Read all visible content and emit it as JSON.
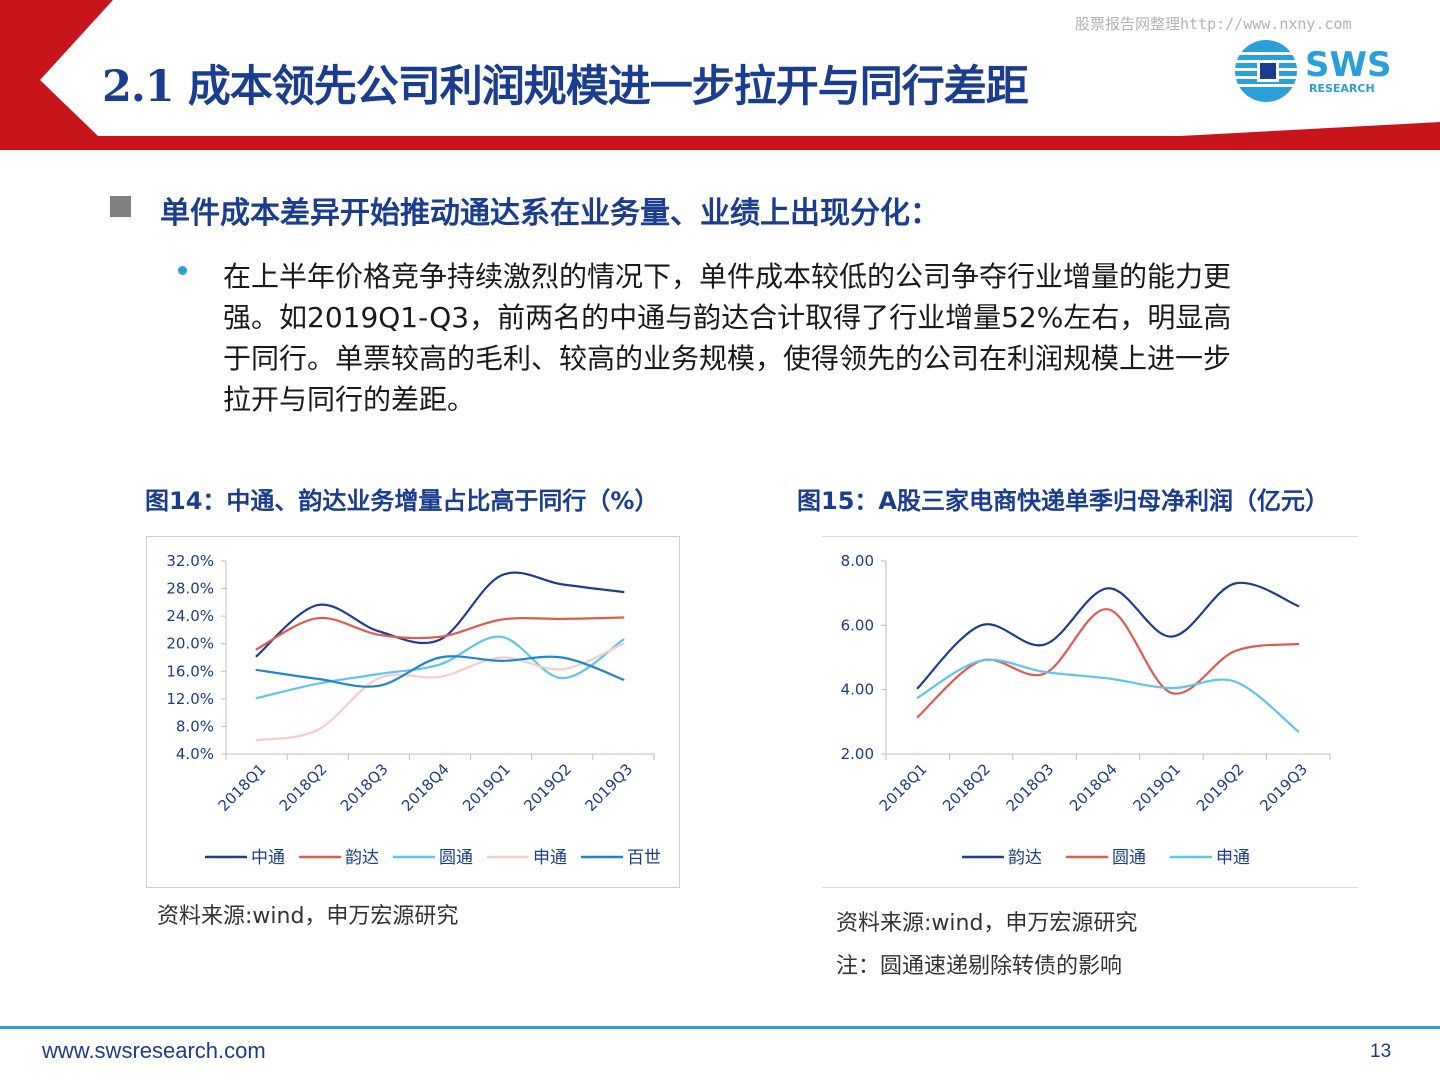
{
  "header": {
    "title": "2.1 成本领先公司利润规模进一步拉开与同行差距",
    "watermark": "股票报告网整理http://www.nxny.com",
    "logo_text": "SWS",
    "logo_subtext": "RESEARCH",
    "colors": {
      "red": "#c8151b",
      "navy": "#1b3d8f",
      "blue": "#2a9fd8"
    }
  },
  "main": {
    "heading": "单件成本差异开始推动通达系在业务量、业绩上出现分化：",
    "body_lines": [
      "在上半年价格竞争持续激烈的情况下，单件成本较低的公司争夺行业增量的能力更",
      "强。如2019Q1-Q3，前两名的中通与韵达合计取得了行业增量52%左右，明显高",
      "于同行。单票较高的毛利、较高的业务规模，使得领先的公司在利润规模上进一步",
      "拉开与同行的差距。"
    ]
  },
  "figures": {
    "fig14": {
      "title": "图14：中通、韵达业务增量占比高于同行（%）",
      "source": "资料来源:wind，申万宏源研究"
    },
    "fig15": {
      "title": "图15：A股三家电商快递单季归母净利润（亿元）",
      "source": "资料来源:wind，申万宏源研究",
      "note": "注：圆通速递剔除转债的影响"
    }
  },
  "chart_data": [
    {
      "type": "line",
      "categories": [
        "2018Q1",
        "2018Q2",
        "2018Q3",
        "2018Q4",
        "2019Q1",
        "2019Q2",
        "2019Q3"
      ],
      "ylim": [
        4.0,
        32.0
      ],
      "yticks": [
        "32.0%",
        "28.0%",
        "24.0%",
        "20.0%",
        "16.0%",
        "12.0%",
        "8.0%",
        "4.0%"
      ],
      "legend_position": "bottom",
      "grid": false,
      "series": [
        {
          "name": "中通",
          "color": "#1f3d8f",
          "values": [
            18.2,
            25.6,
            21.8,
            20.6,
            29.9,
            28.6,
            27.5
          ]
        },
        {
          "name": "韵达",
          "color": "#e05a4f",
          "values": [
            19.2,
            23.7,
            21.3,
            21.0,
            23.5,
            23.6,
            23.8
          ]
        },
        {
          "name": "圆通",
          "color": "#5fc4ee",
          "values": [
            12.1,
            14.2,
            15.6,
            17.0,
            21.0,
            15.0,
            20.6
          ]
        },
        {
          "name": "申通",
          "color": "#f6cdc9",
          "values": [
            6.0,
            7.5,
            15.0,
            15.2,
            18.0,
            16.3,
            20.0
          ]
        },
        {
          "name": "百世",
          "color": "#1f86c9",
          "values": [
            16.2,
            14.9,
            13.9,
            18.0,
            17.5,
            18.0,
            14.8
          ]
        }
      ]
    },
    {
      "type": "line",
      "categories": [
        "2018Q1",
        "2018Q2",
        "2018Q3",
        "2018Q4",
        "2019Q1",
        "2019Q2",
        "2019Q3"
      ],
      "ylim": [
        2.0,
        8.0
      ],
      "yticks": [
        "8.00",
        "6.00",
        "4.00",
        "2.00"
      ],
      "legend_position": "bottom",
      "grid": false,
      "series": [
        {
          "name": "韵达",
          "color": "#1f3d8f",
          "values": [
            4.05,
            6.0,
            5.4,
            7.15,
            5.65,
            7.3,
            6.6
          ]
        },
        {
          "name": "圆通",
          "color": "#e05a4f",
          "values": [
            3.15,
            4.9,
            4.5,
            6.5,
            3.9,
            5.2,
            5.42
          ]
        },
        {
          "name": "申通",
          "color": "#5fc4ee",
          "values": [
            3.75,
            4.9,
            4.55,
            4.35,
            4.05,
            4.25,
            2.7
          ]
        }
      ]
    }
  ],
  "footer": {
    "url": "www.swsresearch.com",
    "page": "13"
  }
}
